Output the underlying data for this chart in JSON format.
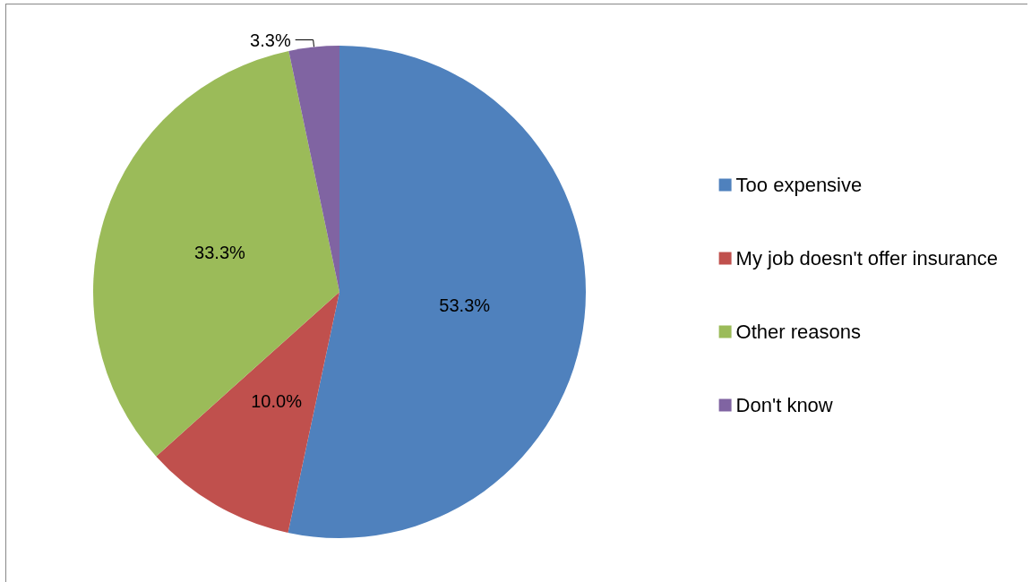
{
  "chart_data": {
    "type": "pie",
    "categories": [
      "Too expensive",
      "My job doesn't offer insurance",
      "Other reasons",
      "Don't know"
    ],
    "values": [
      53.3,
      10.0,
      33.3,
      3.3
    ],
    "value_labels": [
      "53.3%",
      "10.0%",
      "33.3%",
      "3.3%"
    ],
    "colors": [
      "#4f81bd",
      "#c0504d",
      "#9bbb59",
      "#8064a2"
    ],
    "legend": "right"
  }
}
